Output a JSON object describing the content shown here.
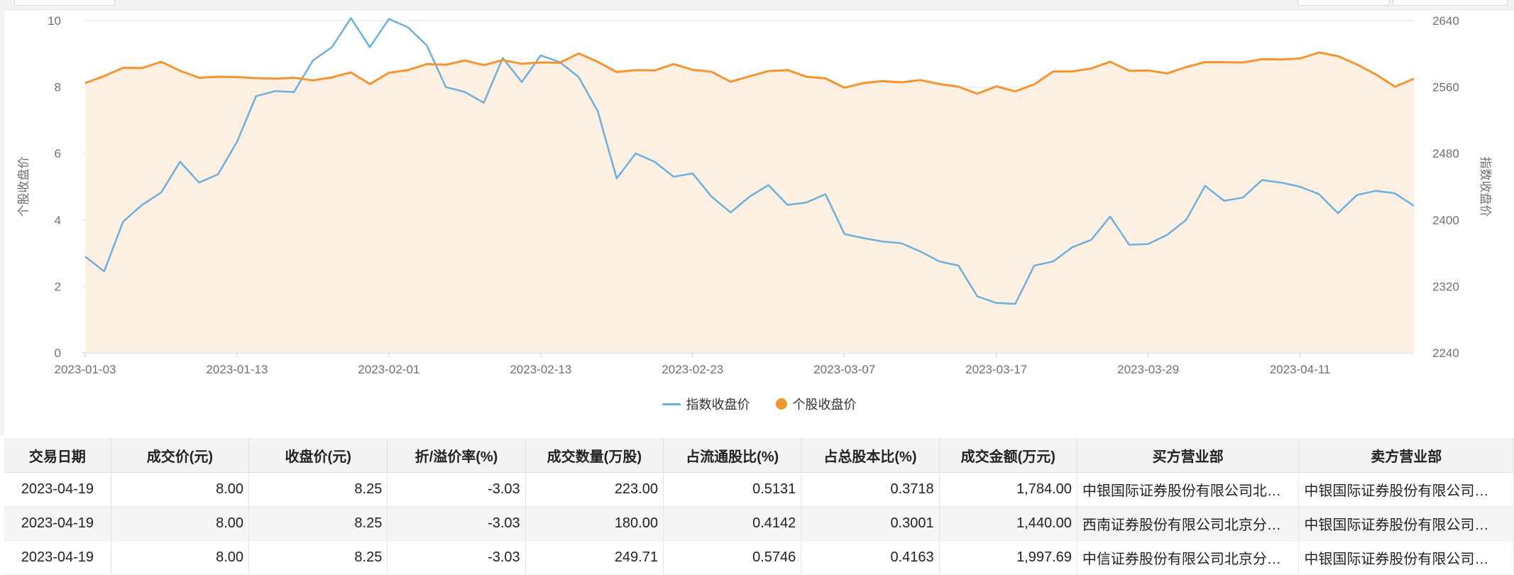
{
  "chart_data": {
    "type": "line",
    "title": "",
    "ylabel_left": "个股收盘价",
    "ylabel_right": "指数收盘价",
    "y_left": {
      "min": 0,
      "max": 10,
      "ticks": [
        "10",
        "8",
        "6",
        "4",
        "2",
        "0"
      ]
    },
    "y_right": {
      "min": 2240,
      "max": 2640,
      "ticks": [
        "2640",
        "2560",
        "2480",
        "2400",
        "2320",
        "2240"
      ]
    },
    "x_tick_labels": [
      "2023-01-03",
      "2023-01-13",
      "2023-02-01",
      "2023-02-13",
      "2023-02-23",
      "2023-03-07",
      "2023-03-17",
      "2023-03-29",
      "2023-04-11"
    ],
    "x_tick_indices": [
      0,
      8,
      16,
      24,
      32,
      40,
      48,
      56,
      64
    ],
    "grid": true,
    "legend_position": "bottom-center",
    "series": [
      {
        "name": "指数收盘价",
        "axis": "right",
        "color": "#6cb0de",
        "values": [
          2356,
          2338,
          2398,
          2418,
          2433,
          2470,
          2445,
          2455,
          2494,
          2549,
          2555,
          2554,
          2592,
          2608,
          2643,
          2608,
          2642,
          2632,
          2610,
          2560,
          2554,
          2541,
          2595,
          2566,
          2598,
          2590,
          2572,
          2531,
          2450,
          2480,
          2470,
          2452,
          2456,
          2428,
          2409,
          2428,
          2442,
          2418,
          2421,
          2431,
          2383,
          2378,
          2374,
          2372,
          2362,
          2350,
          2345,
          2308,
          2300,
          2299,
          2345,
          2350,
          2367,
          2376,
          2404,
          2370,
          2371,
          2382,
          2400,
          2441,
          2423,
          2427,
          2448,
          2445,
          2440,
          2431,
          2408,
          2430,
          2435,
          2432,
          2417
        ]
      },
      {
        "name": "个股收盘价",
        "axis": "left",
        "color": "#f39533",
        "area_color": "#fdefe2",
        "values": [
          8.12,
          8.33,
          8.58,
          8.57,
          8.76,
          8.49,
          8.28,
          8.31,
          8.3,
          8.27,
          8.25,
          8.28,
          8.2,
          8.29,
          8.44,
          8.09,
          8.43,
          8.51,
          8.69,
          8.67,
          8.8,
          8.66,
          8.81,
          8.7,
          8.74,
          8.73,
          9.01,
          8.76,
          8.45,
          8.51,
          8.5,
          8.69,
          8.52,
          8.46,
          8.16,
          8.32,
          8.48,
          8.51,
          8.31,
          8.26,
          7.98,
          8.12,
          8.18,
          8.14,
          8.21,
          8.09,
          8.01,
          7.8,
          8.02,
          7.87,
          8.08,
          8.47,
          8.47,
          8.56,
          8.76,
          8.49,
          8.5,
          8.41,
          8.6,
          8.75,
          8.75,
          8.74,
          8.84,
          8.83,
          8.86,
          9.04,
          8.93,
          8.68,
          8.38,
          8.01,
          8.25
        ]
      }
    ]
  },
  "table": {
    "columns": [
      "交易日期",
      "成交价(元)",
      "收盘价(元)",
      "折/溢价率(%)",
      "成交数量(万股)",
      "占流通股比(%)",
      "占总股本比(%)",
      "成交金额(万元)",
      "买方营业部",
      "卖方营业部"
    ],
    "rows": [
      [
        "2023-04-19",
        "8.00",
        "8.25",
        "-3.03",
        "223.00",
        "0.5131",
        "0.3718",
        "1,784.00",
        "中银国际证券股份有限公司北…",
        "中银国际证券股份有限公司…"
      ],
      [
        "2023-04-19",
        "8.00",
        "8.25",
        "-3.03",
        "180.00",
        "0.4142",
        "0.3001",
        "1,440.00",
        "西南证券股份有限公司北京分…",
        "中银国际证券股份有限公司…"
      ],
      [
        "2023-04-19",
        "8.00",
        "8.25",
        "-3.03",
        "249.71",
        "0.5746",
        "0.4163",
        "1,997.69",
        "中信证券股份有限公司北京分…",
        "中银国际证券股份有限公司…"
      ]
    ]
  }
}
